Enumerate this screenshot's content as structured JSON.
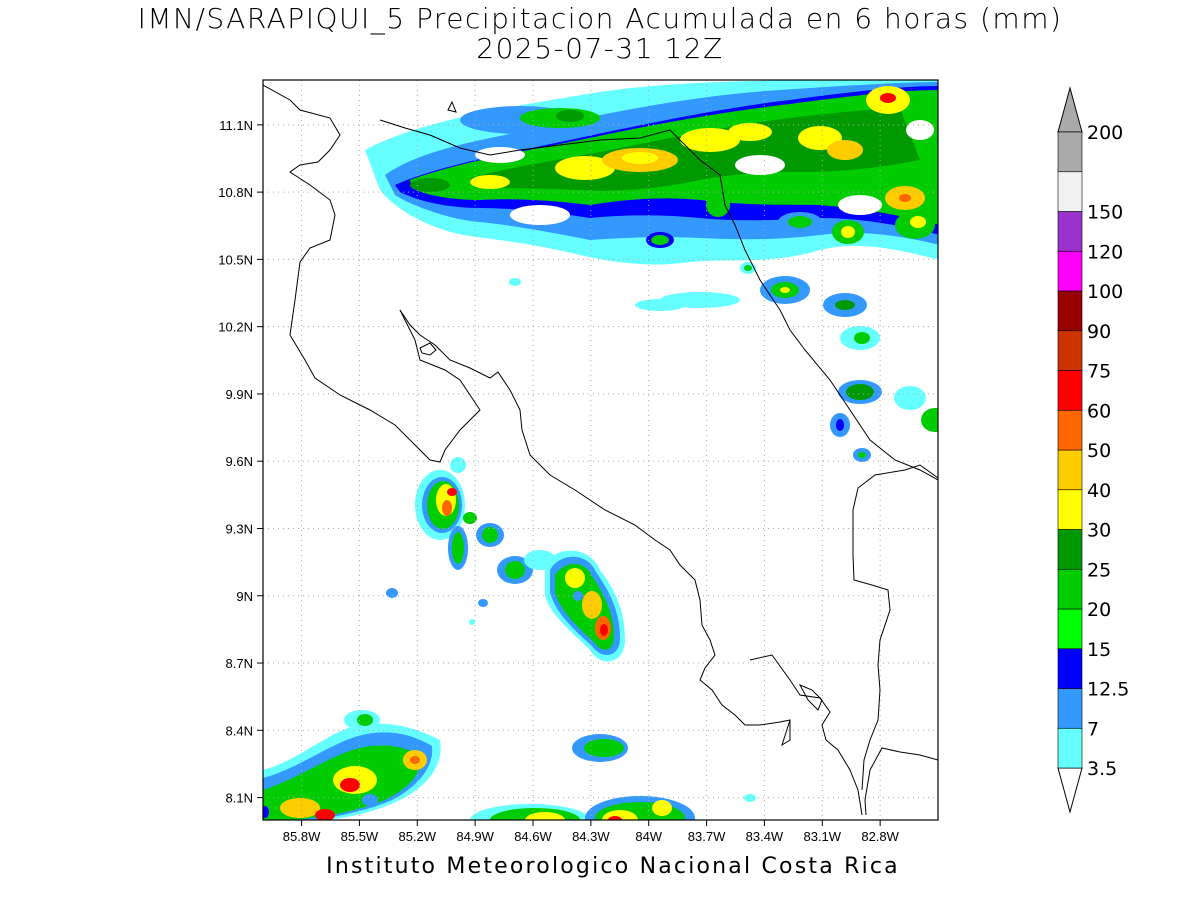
{
  "title": {
    "line1": "IMN/SARAPIQUI_5 Precipitacion Acumulada en 6 horas (mm)",
    "line2": "2025-07-31 12Z"
  },
  "footer": "Instituto Meteorologico Nacional Costa Rica",
  "map": {
    "lon_range": [
      -86.0,
      -82.5
    ],
    "lat_range": [
      8.0,
      11.3
    ],
    "lon_ticks": [
      {
        "value": -85.8,
        "label": "85.8W"
      },
      {
        "value": -85.5,
        "label": "85.5W"
      },
      {
        "value": -85.2,
        "label": "85.2W"
      },
      {
        "value": -84.9,
        "label": "84.9W"
      },
      {
        "value": -84.6,
        "label": "84.6W"
      },
      {
        "value": -84.3,
        "label": "84.3W"
      },
      {
        "value": -84.0,
        "label": "84W"
      },
      {
        "value": -83.7,
        "label": "83.7W"
      },
      {
        "value": -83.4,
        "label": "83.4W"
      },
      {
        "value": -83.1,
        "label": "83.1W"
      },
      {
        "value": -82.8,
        "label": "82.8W"
      }
    ],
    "lat_ticks": [
      {
        "value": 8.1,
        "label": "8.1N"
      },
      {
        "value": 8.4,
        "label": "8.4N"
      },
      {
        "value": 8.7,
        "label": "8.7N"
      },
      {
        "value": 9.0,
        "label": "9N"
      },
      {
        "value": 9.3,
        "label": "9.3N"
      },
      {
        "value": 9.6,
        "label": "9.6N"
      },
      {
        "value": 9.9,
        "label": "9.9N"
      },
      {
        "value": 10.2,
        "label": "10.2N"
      },
      {
        "value": 10.5,
        "label": "10.5N"
      },
      {
        "value": 10.8,
        "label": "10.8N"
      },
      {
        "value": 11.1,
        "label": "11.1N"
      }
    ],
    "grid": "dotted"
  },
  "colorbar": {
    "levels": [
      {
        "label": "3.5",
        "color": "#66ffff"
      },
      {
        "label": "7",
        "color": "#3399ff"
      },
      {
        "label": "12.5",
        "color": "#0000ff"
      },
      {
        "label": "15",
        "color": "#00ff00"
      },
      {
        "label": "20",
        "color": "#00cc00"
      },
      {
        "label": "25",
        "color": "#009900"
      },
      {
        "label": "30",
        "color": "#ffff00"
      },
      {
        "label": "40",
        "color": "#ffcc00"
      },
      {
        "label": "50",
        "color": "#ff6600"
      },
      {
        "label": "60",
        "color": "#ff0000"
      },
      {
        "label": "75",
        "color": "#cc3300"
      },
      {
        "label": "90",
        "color": "#990000"
      },
      {
        "label": "100",
        "color": "#ff00ff"
      },
      {
        "label": "120",
        "color": "#9933cc"
      },
      {
        "label": "150",
        "color": "#f2f2f2"
      },
      {
        "label": "200",
        "color": "#aaaaaa"
      }
    ]
  }
}
